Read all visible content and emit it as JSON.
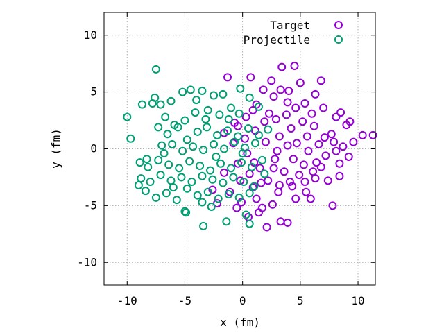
{
  "chart_data": {
    "type": "scatter",
    "title": "",
    "xlabel": "x (fm)",
    "ylabel": "y (fm)",
    "xlim": [
      -12,
      11.5
    ],
    "ylim": [
      -12,
      12
    ],
    "xticks": [
      -10,
      -5,
      0,
      5,
      10
    ],
    "yticks": [
      -10,
      -5,
      0,
      5,
      10
    ],
    "grid": true,
    "legend_position": "top-right",
    "series": [
      {
        "name": "Target",
        "color": "#9400d3",
        "marker": "open-circle",
        "points": [
          [
            -1.3,
            6.3
          ],
          [
            0.7,
            6.3
          ],
          [
            1.8,
            5.2
          ],
          [
            2.5,
            6.0
          ],
          [
            3.4,
            7.2
          ],
          [
            4.5,
            7.3
          ],
          [
            6.8,
            6.0
          ],
          [
            3.3,
            5.2
          ],
          [
            3.9,
            4.1
          ],
          [
            5.4,
            4.0
          ],
          [
            4.6,
            3.6
          ],
          [
            6.0,
            3.1
          ],
          [
            7.1,
            1.0
          ],
          [
            8.1,
            2.8
          ],
          [
            9.0,
            2.1
          ],
          [
            10.4,
            1.2
          ],
          [
            11.3,
            1.2
          ],
          [
            9.6,
            0.6
          ],
          [
            8.1,
            -0.2
          ],
          [
            9.2,
            -0.7
          ],
          [
            8.4,
            -2.4
          ],
          [
            7.4,
            -2.8
          ],
          [
            6.3,
            -2.6
          ],
          [
            5.5,
            -3.8
          ],
          [
            4.6,
            -4.4
          ],
          [
            5.9,
            -4.4
          ],
          [
            7.8,
            -5.0
          ],
          [
            3.9,
            -6.5
          ],
          [
            3.3,
            -6.4
          ],
          [
            2.1,
            -6.9
          ],
          [
            1.7,
            -5.2
          ],
          [
            3.1,
            -3.8
          ],
          [
            2.2,
            -2.8
          ],
          [
            1.5,
            -1.7
          ],
          [
            2.8,
            -0.9
          ],
          [
            4.4,
            -0.9
          ],
          [
            6.4,
            -1.2
          ],
          [
            5.7,
            -0.2
          ],
          [
            3.9,
            0.3
          ],
          [
            3.2,
            1.1
          ],
          [
            4.2,
            1.8
          ],
          [
            5.2,
            2.4
          ],
          [
            6.2,
            2.0
          ],
          [
            7.7,
            1.3
          ],
          [
            8.7,
            0.2
          ],
          [
            2.3,
            3.1
          ],
          [
            1.2,
            3.9
          ],
          [
            0.3,
            2.8
          ],
          [
            -0.7,
            2.3
          ],
          [
            -1.6,
            1.4
          ],
          [
            -0.8,
            0.5
          ],
          [
            0.4,
            -0.4
          ],
          [
            -0.4,
            -1.3
          ],
          [
            -1.6,
            -2.1
          ],
          [
            -2.6,
            -3.6
          ],
          [
            -2.2,
            -4.8
          ],
          [
            -0.1,
            -4.7
          ],
          [
            1.2,
            -4.4
          ],
          [
            0.9,
            -3.4
          ],
          [
            -0.2,
            -2.8
          ],
          [
            1.9,
            2.4
          ],
          [
            2.9,
            2.6
          ],
          [
            3.8,
            3.0
          ],
          [
            5.6,
            1.1
          ],
          [
            6.6,
            0.4
          ],
          [
            7.2,
            -0.6
          ],
          [
            8.4,
            -1.3
          ],
          [
            4.9,
            -2.3
          ],
          [
            3.6,
            -2.0
          ],
          [
            2.7,
            -1.7
          ],
          [
            1.0,
            -1.2
          ],
          [
            0.2,
            0.9
          ],
          [
            1.1,
            1.6
          ],
          [
            2.0,
            0.6
          ],
          [
            3.0,
            -0.2
          ],
          [
            4.7,
            0.5
          ],
          [
            5.3,
            -1.4
          ],
          [
            6.1,
            -2.0
          ],
          [
            4.1,
            -2.9
          ],
          [
            2.6,
            -4.9
          ],
          [
            1.4,
            -5.6
          ],
          [
            0.5,
            -6.0
          ],
          [
            -0.5,
            -5.2
          ],
          [
            -1.1,
            -3.8
          ],
          [
            -0.4,
            2.0
          ],
          [
            0.9,
            3.4
          ],
          [
            2.7,
            4.6
          ],
          [
            4.0,
            5.1
          ],
          [
            5.0,
            5.8
          ],
          [
            6.3,
            4.8
          ],
          [
            7.0,
            3.6
          ],
          [
            8.5,
            3.2
          ],
          [
            9.3,
            2.4
          ],
          [
            7.9,
            0.6
          ],
          [
            6.8,
            -1.6
          ],
          [
            5.4,
            -2.9
          ],
          [
            4.3,
            -3.3
          ],
          [
            3.2,
            -3.2
          ],
          [
            1.6,
            -3.0
          ],
          [
            0.6,
            -2.2
          ]
        ]
      },
      {
        "name": "Projectile",
        "color": "#009e73",
        "marker": "open-circle",
        "points": [
          [
            -7.5,
            7.0
          ],
          [
            -10.0,
            2.8
          ],
          [
            -9.7,
            0.9
          ],
          [
            -8.7,
            3.9
          ],
          [
            -7.6,
            4.5
          ],
          [
            -7.1,
            3.9
          ],
          [
            -6.2,
            4.2
          ],
          [
            -5.2,
            5.0
          ],
          [
            -4.5,
            5.2
          ],
          [
            -3.5,
            5.1
          ],
          [
            -2.5,
            4.7
          ],
          [
            -1.7,
            4.8
          ],
          [
            -0.2,
            5.3
          ],
          [
            0.6,
            4.5
          ],
          [
            1.4,
            3.7
          ],
          [
            -6.7,
            2.8
          ],
          [
            -5.9,
            2.1
          ],
          [
            -5.0,
            2.5
          ],
          [
            -4.1,
            3.2
          ],
          [
            -3.0,
            3.4
          ],
          [
            -2.0,
            3.0
          ],
          [
            -1.2,
            2.6
          ],
          [
            -0.3,
            3.1
          ],
          [
            -7.3,
            1.9
          ],
          [
            -6.5,
            1.3
          ],
          [
            -5.6,
            1.9
          ],
          [
            -4.8,
            0.8
          ],
          [
            -3.9,
            1.5
          ],
          [
            -3.1,
            1.9
          ],
          [
            -2.2,
            1.2
          ],
          [
            -1.3,
            1.6
          ],
          [
            -0.4,
            1.1
          ],
          [
            0.5,
            1.8
          ],
          [
            1.4,
            1.2
          ],
          [
            2.2,
            1.7
          ],
          [
            -7.0,
            0.3
          ],
          [
            -6.1,
            0.4
          ],
          [
            -5.2,
            -0.2
          ],
          [
            -4.3,
            0.2
          ],
          [
            -3.4,
            -0.1
          ],
          [
            -2.5,
            0.4
          ],
          [
            -1.6,
            0.0
          ],
          [
            -0.7,
            0.6
          ],
          [
            0.2,
            0.1
          ],
          [
            1.1,
            0.5
          ],
          [
            -8.9,
            -1.2
          ],
          [
            -8.2,
            -1.6
          ],
          [
            -7.3,
            -1.0
          ],
          [
            -6.4,
            -1.4
          ],
          [
            -5.5,
            -1.7
          ],
          [
            -4.6,
            -1.1
          ],
          [
            -3.7,
            -1.5
          ],
          [
            -2.8,
            -1.9
          ],
          [
            -1.9,
            -1.3
          ],
          [
            -1.0,
            -1.7
          ],
          [
            -0.1,
            -1.2
          ],
          [
            0.8,
            -1.6
          ],
          [
            1.7,
            -1.0
          ],
          [
            -8.8,
            -2.6
          ],
          [
            -8.0,
            -2.9
          ],
          [
            -7.1,
            -2.3
          ],
          [
            -6.2,
            -2.8
          ],
          [
            -5.3,
            -2.5
          ],
          [
            -4.4,
            -2.9
          ],
          [
            -3.5,
            -2.4
          ],
          [
            -2.6,
            -2.7
          ],
          [
            -1.7,
            -3.0
          ],
          [
            -0.8,
            -2.5
          ],
          [
            0.1,
            -2.9
          ],
          [
            1.0,
            -3.3
          ],
          [
            -9.0,
            -3.2
          ],
          [
            -8.4,
            -3.7
          ],
          [
            -7.5,
            -4.3
          ],
          [
            -6.6,
            -3.9
          ],
          [
            -5.7,
            -4.5
          ],
          [
            -4.8,
            -3.5
          ],
          [
            -3.9,
            -4.1
          ],
          [
            -3.0,
            -3.8
          ],
          [
            -2.1,
            -4.4
          ],
          [
            -1.2,
            -4.0
          ],
          [
            -0.3,
            -4.3
          ],
          [
            0.6,
            -3.9
          ],
          [
            -5.0,
            -5.5
          ],
          [
            -4.9,
            -5.6
          ],
          [
            -3.5,
            -4.7
          ],
          [
            -2.7,
            -5.1
          ],
          [
            0.3,
            -5.8
          ],
          [
            -1.4,
            -6.4
          ],
          [
            -3.4,
            -6.8
          ],
          [
            0.6,
            -6.6
          ],
          [
            -7.8,
            4.0
          ],
          [
            -8.3,
            -0.9
          ],
          [
            -6.8,
            -0.4
          ],
          [
            -4.0,
            4.3
          ],
          [
            -3.2,
            2.6
          ],
          [
            -2.3,
            -0.7
          ],
          [
            -1.0,
            3.6
          ],
          [
            0.0,
            -0.4
          ],
          [
            1.9,
            -2.2
          ],
          [
            -6.0,
            -3.4
          ]
        ]
      }
    ]
  }
}
